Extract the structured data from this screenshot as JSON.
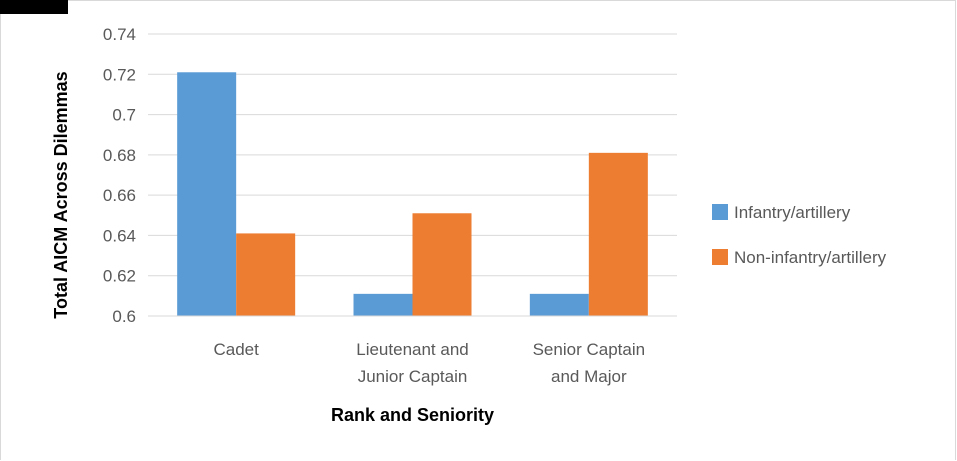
{
  "chart_data": {
    "type": "bar",
    "categories": [
      [
        "Cadet"
      ],
      [
        "Lieutenant and",
        "Junior Captain"
      ],
      [
        "Senior Captain",
        "and Major"
      ]
    ],
    "series": [
      {
        "name": "Infantry/artillery",
        "color": "#5B9BD5",
        "values": [
          0.721,
          0.611,
          0.611
        ]
      },
      {
        "name": "Non-infantry/artillery",
        "color": "#ED7D31",
        "values": [
          0.641,
          0.651,
          0.681
        ]
      }
    ],
    "xlabel": "Rank and Seniority",
    "ylabel": "Total AICM Across Dilemmas",
    "ylim": [
      0.6,
      0.74
    ],
    "yticks": [
      "0.6",
      "0.62",
      "0.64",
      "0.66",
      "0.68",
      "0.7",
      "0.72",
      "0.74"
    ],
    "grid": true,
    "legend_position": "right"
  }
}
